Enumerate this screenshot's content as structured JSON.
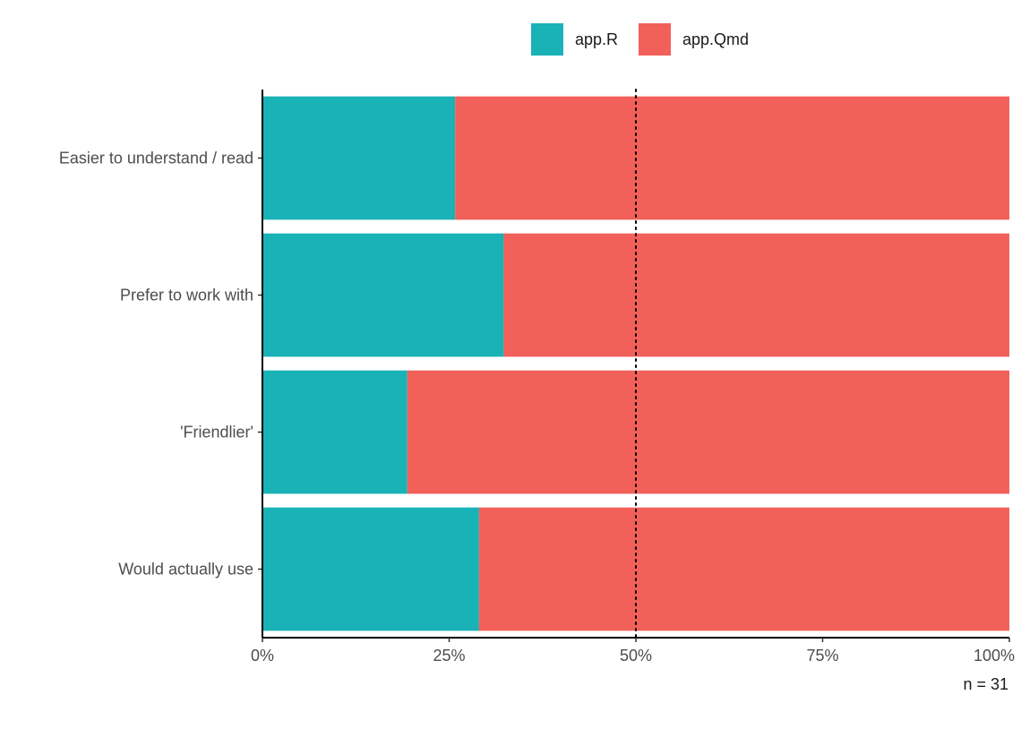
{
  "chart_data": {
    "type": "bar",
    "orientation": "horizontal",
    "stacked": "percent",
    "categories": [
      "Easier to understand / read",
      "Prefer to work with",
      "'Friendlier'",
      "Would actually use"
    ],
    "series": [
      {
        "name": "app.R",
        "values": [
          0.258,
          0.323,
          0.194,
          0.29
        ]
      },
      {
        "name": "app.Qmd",
        "values": [
          0.742,
          0.677,
          0.806,
          0.71
        ]
      }
    ],
    "x_ticks": [
      "0%",
      "25%",
      "50%",
      "75%",
      "100%"
    ],
    "xlim": [
      0,
      1
    ],
    "reference_line": {
      "value": 0.5,
      "style": "dotted"
    },
    "legend_position": "top",
    "grid": false,
    "caption": "n = 31",
    "colors": {
      "app.R": "#19b2b6",
      "app.Qmd": "#f2605a"
    }
  }
}
